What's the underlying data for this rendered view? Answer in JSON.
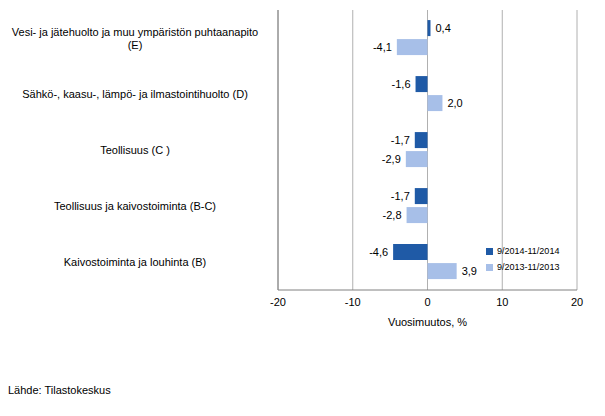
{
  "chart_data": {
    "type": "bar",
    "orientation": "horizontal",
    "categories": [
      "Vesi- ja jätehuolto ja muu ympäristön puhtaanapito (E)",
      "Sähkö-, kaasu-, lämpö- ja ilmastointihuolto (D)",
      "Teollisuus (C )",
      "Teollisuus ja kaivostoiminta (B-C)",
      "Kaivostoiminta ja louhinta (B)"
    ],
    "series": [
      {
        "name": "9/2014-11/2014",
        "color": "#1f5aa6",
        "values": [
          0.4,
          -1.6,
          -1.7,
          -1.7,
          -4.6
        ],
        "value_labels": [
          "0,4",
          "-1,6",
          "-1,7",
          "-1,7",
          "-4,6"
        ]
      },
      {
        "name": "9/2013-11/2013",
        "color": "#a7bfe8",
        "values": [
          -4.1,
          2.0,
          -2.9,
          -2.8,
          3.9
        ],
        "value_labels": [
          "-4,1",
          "2,0",
          "-2,9",
          "-2,8",
          "3,9"
        ]
      }
    ],
    "x_label": "Vuosimuutos, %",
    "xlim": [
      -20,
      20
    ],
    "xticks": [
      -20,
      -10,
      0,
      10,
      20
    ],
    "grid": true,
    "data_labels": true,
    "legend": "lower right",
    "source": "Lähde: Tilastokeskus"
  }
}
